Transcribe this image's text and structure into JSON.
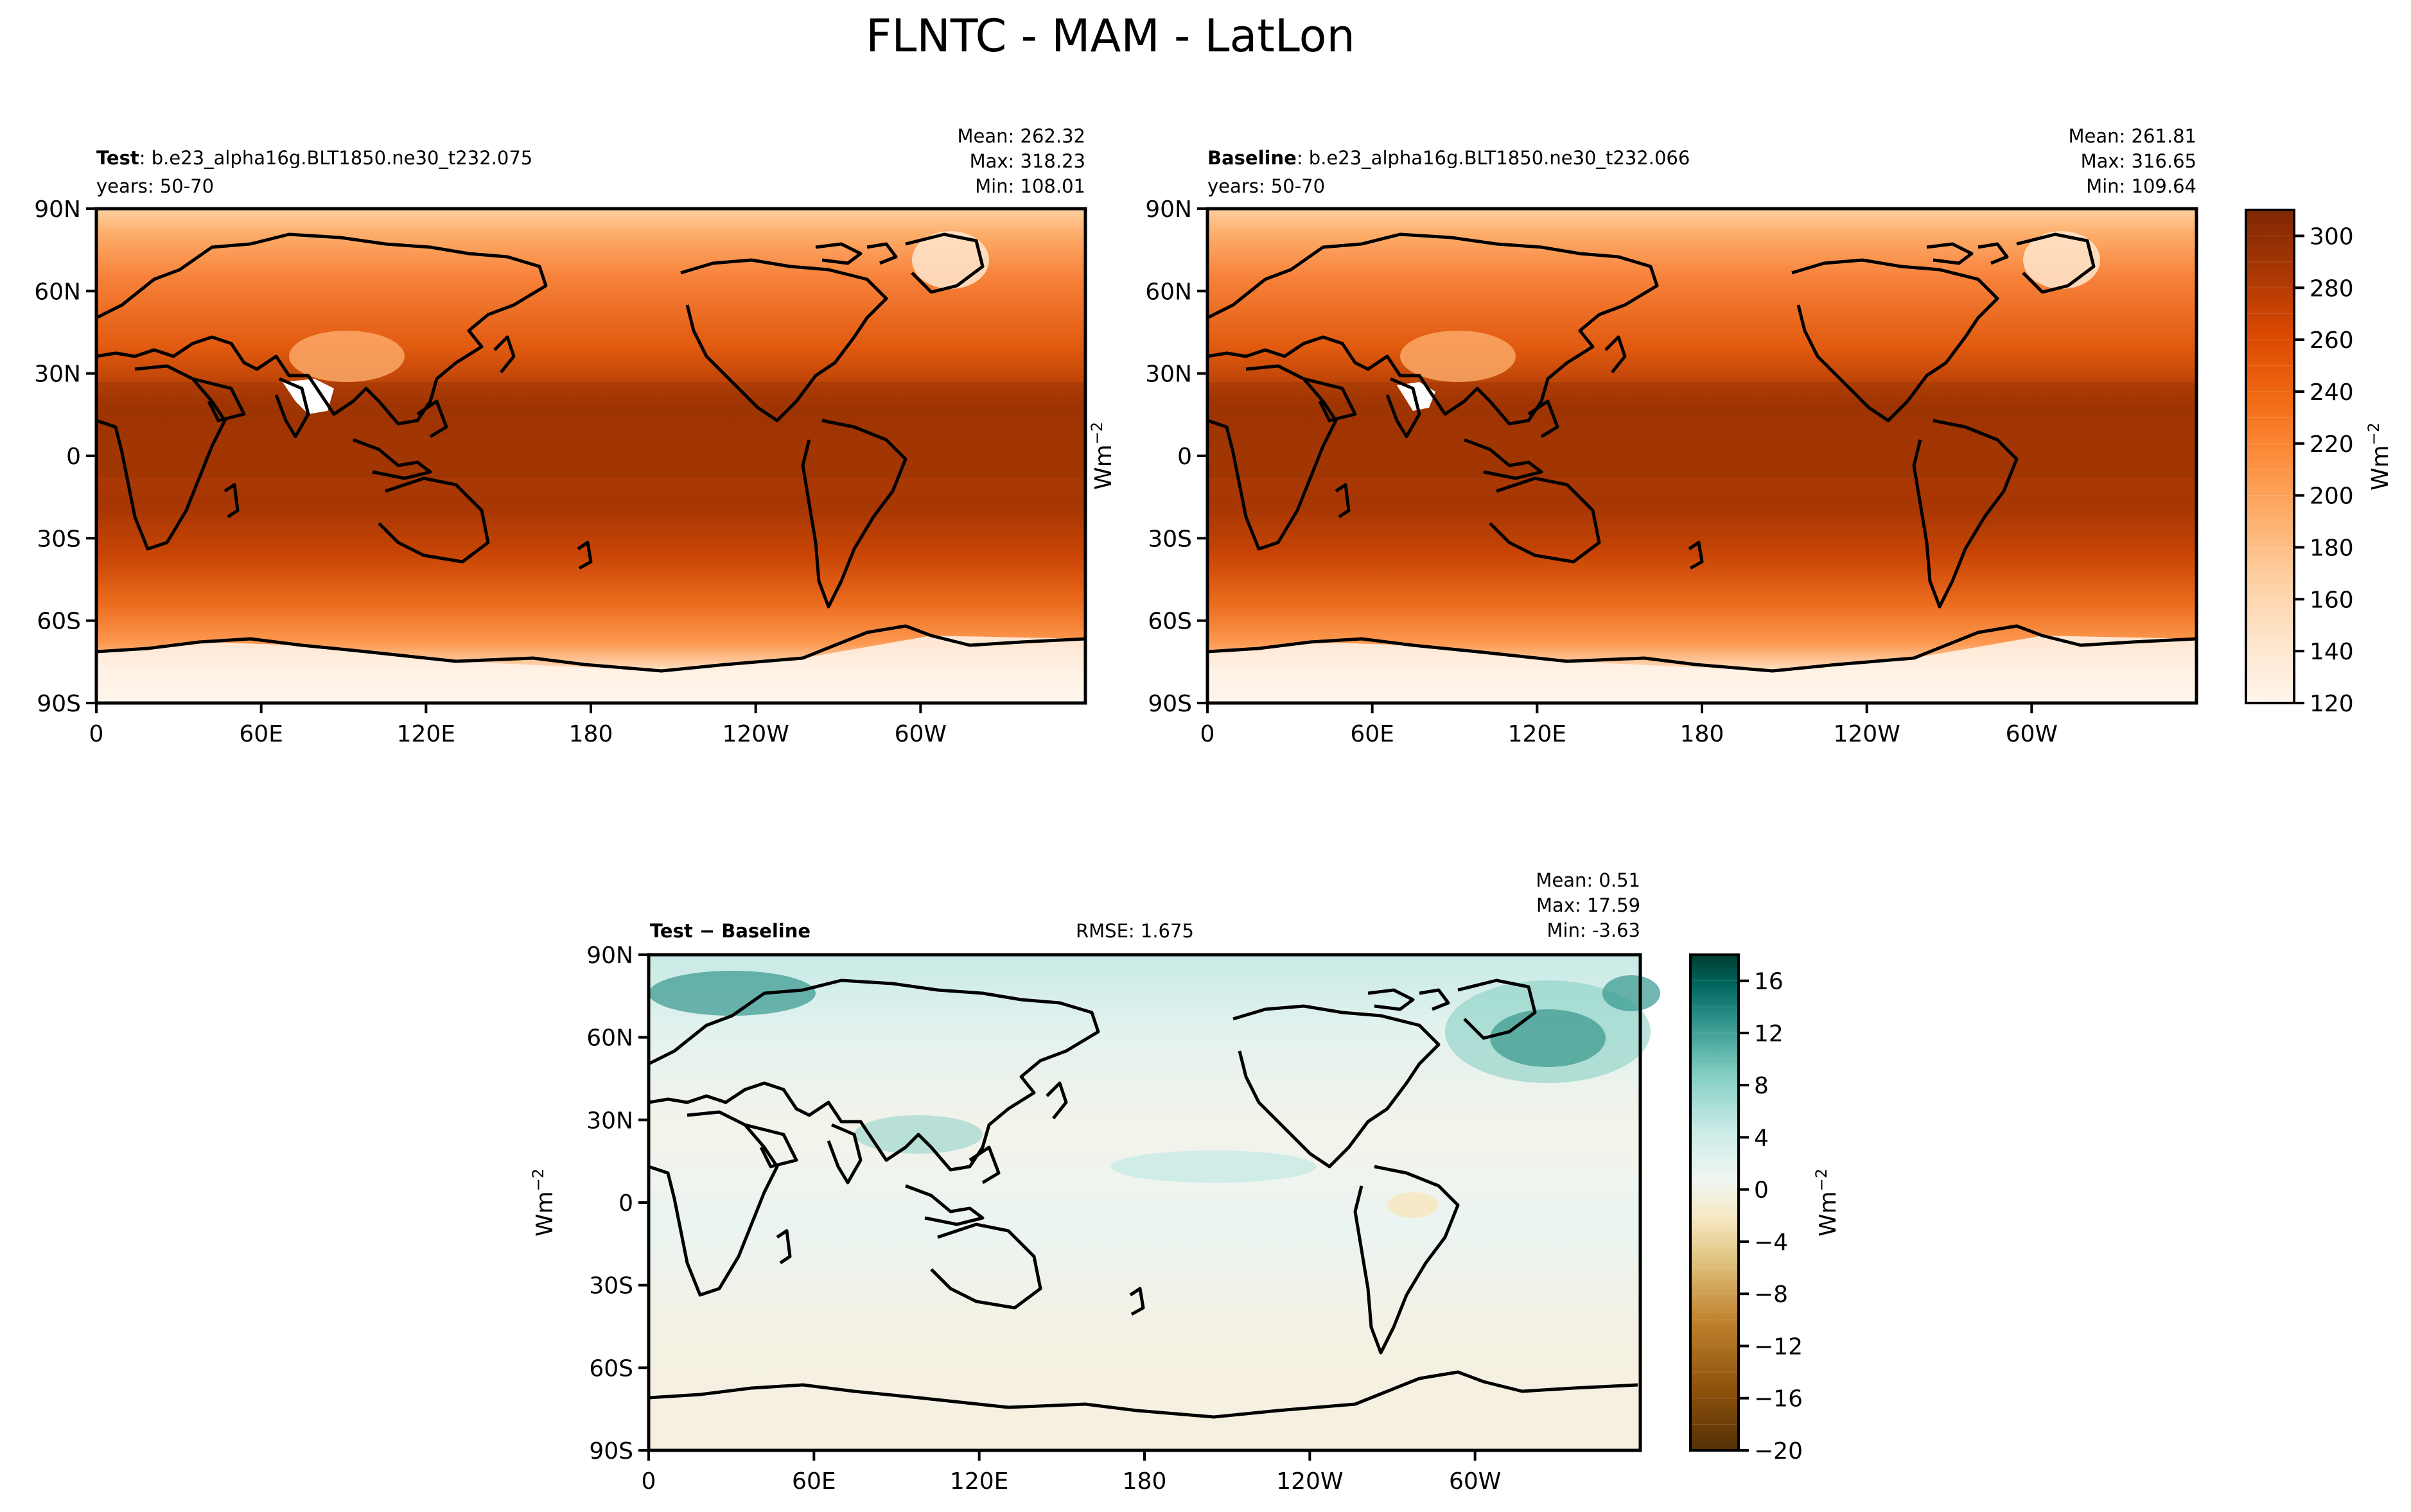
{
  "figure_title": "FLNTC - MAM - LatLon",
  "lat_ticks": [
    "90N",
    "60N",
    "30N",
    "0",
    "30S",
    "60S",
    "90S"
  ],
  "lon_ticks": [
    "0",
    "60E",
    "120E",
    "180",
    "120W",
    "60W"
  ],
  "units_label": "Wm",
  "units_exp": "−2",
  "colors": {
    "orange_ramp": [
      "#fff5eb",
      "#fee6ce",
      "#fdd0a2",
      "#fdae6b",
      "#fd8d3c",
      "#f16913",
      "#d94801",
      "#a63603",
      "#7f2704"
    ],
    "diff_ramp": [
      "#543005",
      "#8c510a",
      "#bf812d",
      "#dfc27d",
      "#f6e8c3",
      "#eef6f3",
      "#c7eae5",
      "#80cdc1",
      "#35978f",
      "#01665e",
      "#003c30"
    ],
    "land_line": "#000000"
  },
  "panels": {
    "test": {
      "label_bold": "Test",
      "label_rest": ": b.e23_alpha16g.BLT1850.ne30_t232.075",
      "years": "years: 50-70",
      "mean": "Mean: 262.32",
      "max": "Max: 318.23",
      "min": "Min: 108.01"
    },
    "baseline": {
      "label_bold": "Baseline",
      "label_rest": ": b.e23_alpha16g.BLT1850.ne30_t232.066",
      "years": "years: 50-70",
      "mean": "Mean: 261.81",
      "max": "Max: 316.65",
      "min": "Min: 109.64"
    },
    "diff": {
      "label": "Test − Baseline",
      "rmse": "RMSE: 1.675",
      "mean": "Mean:  0.51",
      "max": "Max: 17.59",
      "min": "Min: -3.63"
    }
  },
  "chart_data": [
    {
      "type": "heatmap",
      "name": "Test",
      "x": {
        "ticks": [
          "0",
          "60E",
          "120E",
          "180",
          "120W",
          "60W"
        ],
        "range": [
          0,
          360
        ]
      },
      "y": {
        "ticks": [
          "90N",
          "60N",
          "30N",
          "0",
          "30S",
          "60S",
          "90S"
        ],
        "range": [
          -90,
          90
        ]
      },
      "stats": {
        "mean": 262.32,
        "max": 318.23,
        "min": 108.01
      },
      "colorbar": {
        "ticks": [
          120,
          140,
          160,
          180,
          200,
          220,
          240,
          260,
          280,
          300
        ],
        "range": [
          120,
          310
        ],
        "label": "Wm−2"
      }
    },
    {
      "type": "heatmap",
      "name": "Baseline",
      "x": {
        "ticks": [
          "0",
          "60E",
          "120E",
          "180",
          "120W",
          "60W"
        ],
        "range": [
          0,
          360
        ]
      },
      "y": {
        "ticks": [
          "90N",
          "60N",
          "30N",
          "0",
          "30S",
          "60S",
          "90S"
        ],
        "range": [
          -90,
          90
        ]
      },
      "stats": {
        "mean": 261.81,
        "max": 316.65,
        "min": 109.64
      },
      "colorbar": {
        "ticks": [
          120,
          140,
          160,
          180,
          200,
          220,
          240,
          260,
          280,
          300
        ],
        "range": [
          120,
          310
        ],
        "label": "Wm−2"
      }
    },
    {
      "type": "heatmap",
      "name": "Test − Baseline",
      "x": {
        "ticks": [
          "0",
          "60E",
          "120E",
          "180",
          "120W",
          "60W"
        ],
        "range": [
          0,
          360
        ]
      },
      "y": {
        "ticks": [
          "90N",
          "60N",
          "30N",
          "0",
          "30S",
          "60S",
          "90S"
        ],
        "range": [
          -90,
          90
        ]
      },
      "stats": {
        "mean": 0.51,
        "max": 17.59,
        "min": -3.63,
        "rmse": 1.675
      },
      "colorbar": {
        "ticks": [
          16,
          12,
          8,
          4,
          0,
          -4,
          -8,
          -12,
          -16,
          -20
        ],
        "range": [
          -20,
          18
        ],
        "label": "Wm−2"
      }
    }
  ]
}
